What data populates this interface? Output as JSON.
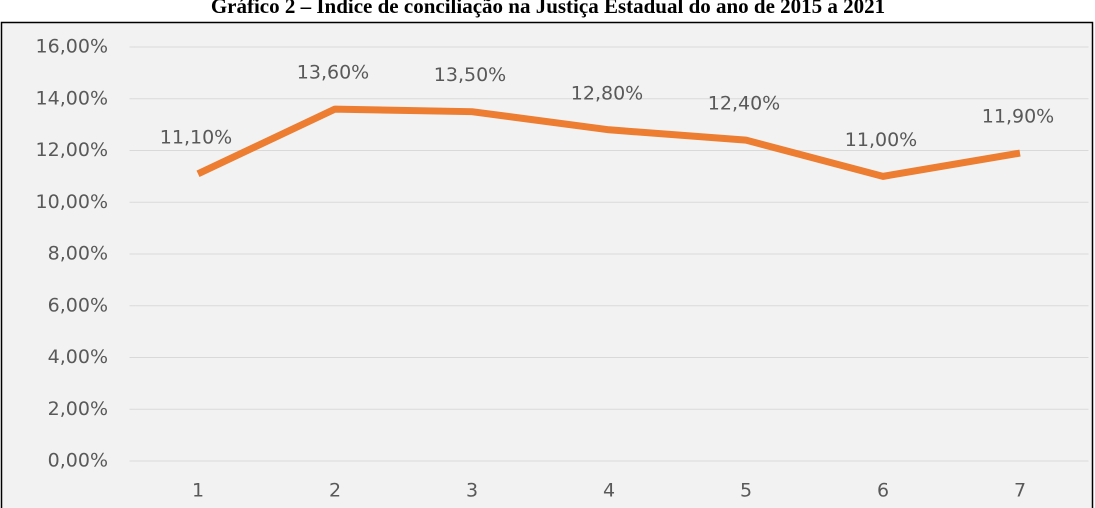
{
  "chart_data": {
    "type": "line",
    "title": "Gráfico 2 – Índice de conciliação na Justiça Estadual do ano de 2015 a 2021",
    "categories": [
      "1",
      "2",
      "3",
      "4",
      "5",
      "6",
      "7"
    ],
    "series": [
      {
        "name": "Índice de conciliação",
        "color": "#ed7d31",
        "values": [
          11.1,
          13.6,
          13.5,
          12.8,
          12.4,
          11.0,
          11.9
        ],
        "value_labels": [
          "11,10%",
          "13,60%",
          "13,50%",
          "12,80%",
          "12,40%",
          "11,00%",
          "11,90%"
        ]
      }
    ],
    "ylim": [
      0,
      16
    ],
    "yticks": [
      {
        "value": 0,
        "label": "0,00%"
      },
      {
        "value": 2,
        "label": "2,00%"
      },
      {
        "value": 4,
        "label": "4,00%"
      },
      {
        "value": 6,
        "label": "6,00%"
      },
      {
        "value": 8,
        "label": "8,00%"
      },
      {
        "value": 10,
        "label": "10,00%"
      },
      {
        "value": 12,
        "label": "12,00%"
      },
      {
        "value": 14,
        "label": "14,00%"
      },
      {
        "value": 16,
        "label": "16,00%"
      }
    ],
    "grid": true
  }
}
